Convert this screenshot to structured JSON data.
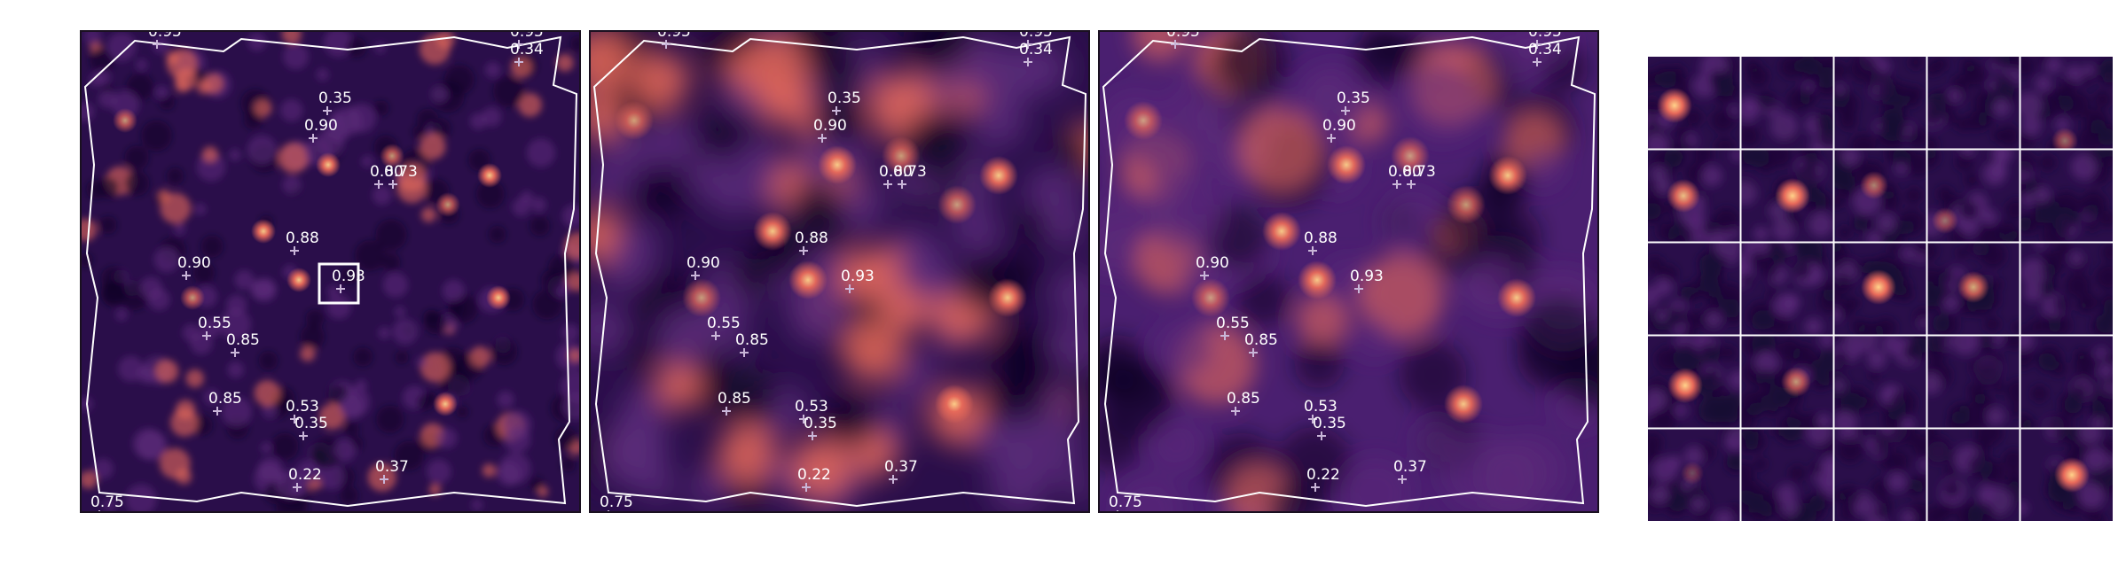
{
  "colors": {
    "background": "#2a0e4a",
    "mid": "#5b2a7a",
    "bright": "#e86a5a",
    "peak": "#ffd28a",
    "marker": "#c9b6d8",
    "footprint": "#ffffff"
  },
  "panels": [
    {
      "name": "panel-raw",
      "style": "noisy"
    },
    {
      "name": "panel-smoothed",
      "style": "smooth"
    },
    {
      "name": "panel-model",
      "style": "model"
    }
  ],
  "labels": [
    "0.95",
    "0.95",
    "0.34",
    "0.35",
    "0.90",
    "0.73",
    "0.80",
    "0.88",
    "0.90",
    "0.93",
    "0.55",
    "0.85",
    "0.85",
    "0.53",
    "0.35",
    "0.22",
    "0.37",
    "0.75"
  ],
  "highlight_label": "0.93",
  "cutouts": {
    "rows": 5,
    "cols": 5
  }
}
